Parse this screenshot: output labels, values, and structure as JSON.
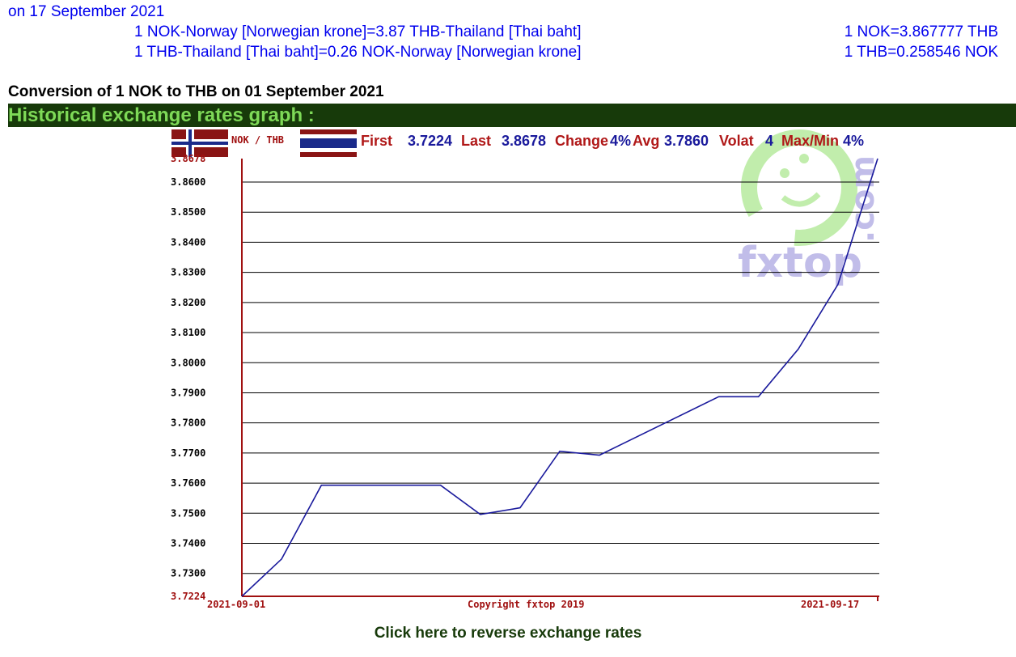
{
  "header": {
    "date_line": "on 17 September 2021",
    "rate_lines": [
      {
        "left": "1 NOK-Norway [Norwegian krone]=3.87 THB-Thailand [Thai baht]",
        "right": "1 NOK=3.867777 THB"
      },
      {
        "left": "1 THB-Thailand [Thai baht]=0.26 NOK-Norway [Norwegian krone]",
        "right": "1 THB=0.258546 NOK"
      }
    ]
  },
  "conversion_title": "Conversion of 1 NOK to THB on 01 September 2021",
  "section_title": "Historical exchange rates graph :",
  "stats": {
    "pair_label": "NOK / THB",
    "first_label": "First",
    "first_value": "3.7224",
    "last_label": "Last",
    "last_value": "3.8678",
    "change_label": "Change",
    "change_value": "4%",
    "avg_label": "Avg",
    "avg_value": "3.7860",
    "volat_label": "Volat",
    "volat_value": "4",
    "maxmin_label": "Max/Min",
    "maxmin_value": "4%"
  },
  "copyright": "Copyright fxtop 2019",
  "watermark_text": "fxtop",
  "watermark_domain": ".com",
  "reverse_link": "Click here to reverse exchange rates",
  "colors": {
    "header_text": "#0000ee",
    "section_bg": "#173a0a",
    "section_text": "#7ed957",
    "axis": "#a01010",
    "line": "#1a1a9c",
    "grid": "#000000",
    "stat_label": "#b01818",
    "stat_value": "#1a1a9c"
  },
  "chart_data": {
    "type": "line",
    "x_start_label": "2021-09-01",
    "x_end_label": "2021-09-17",
    "x": [
      "2021-09-01",
      "2021-09-02",
      "2021-09-03",
      "2021-09-06",
      "2021-09-07",
      "2021-09-08",
      "2021-09-09",
      "2021-09-10",
      "2021-09-13",
      "2021-09-14",
      "2021-09-15",
      "2021-09-16",
      "2021-09-17"
    ],
    "values": [
      3.7224,
      3.7348,
      3.7593,
      3.7593,
      3.7496,
      3.7518,
      3.7706,
      3.7693,
      3.7887,
      3.7887,
      3.8045,
      3.826,
      3.8678
    ],
    "y_ticks": [
      "3.7224",
      "3.7300",
      "3.7400",
      "3.7500",
      "3.7600",
      "3.7700",
      "3.7800",
      "3.7900",
      "3.8000",
      "3.8100",
      "3.8200",
      "3.8300",
      "3.8400",
      "3.8500",
      "3.8600",
      "3.8678"
    ],
    "ylim": [
      3.7224,
      3.8678
    ],
    "grid": true
  }
}
